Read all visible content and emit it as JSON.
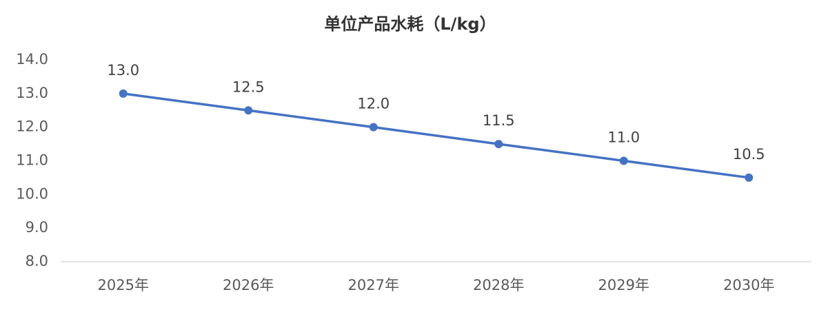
{
  "chart_data": {
    "type": "line",
    "title": "单位产品水耗（L/kg）",
    "categories": [
      "2025年",
      "2026年",
      "2027年",
      "2028年",
      "2029年",
      "2030年"
    ],
    "series": [
      {
        "name": "单位产品水耗",
        "color": "#4472c4",
        "values": [
          13.0,
          12.5,
          12.0,
          11.5,
          11.0,
          10.5
        ],
        "value_labels": [
          "13.0",
          "12.5",
          "12.0",
          "11.5",
          "11.0",
          "10.5"
        ]
      }
    ],
    "ylim": [
      8,
      14
    ],
    "yticks": [
      {
        "value": 8,
        "label": "8.0"
      },
      {
        "value": 9,
        "label": "9.0"
      },
      {
        "value": 10,
        "label": "10.0"
      },
      {
        "value": 11,
        "label": "11.0"
      },
      {
        "value": 12,
        "label": "12.0"
      },
      {
        "value": 13,
        "label": "13.0"
      },
      {
        "value": 14,
        "label": "14.0"
      }
    ],
    "grid": false
  }
}
